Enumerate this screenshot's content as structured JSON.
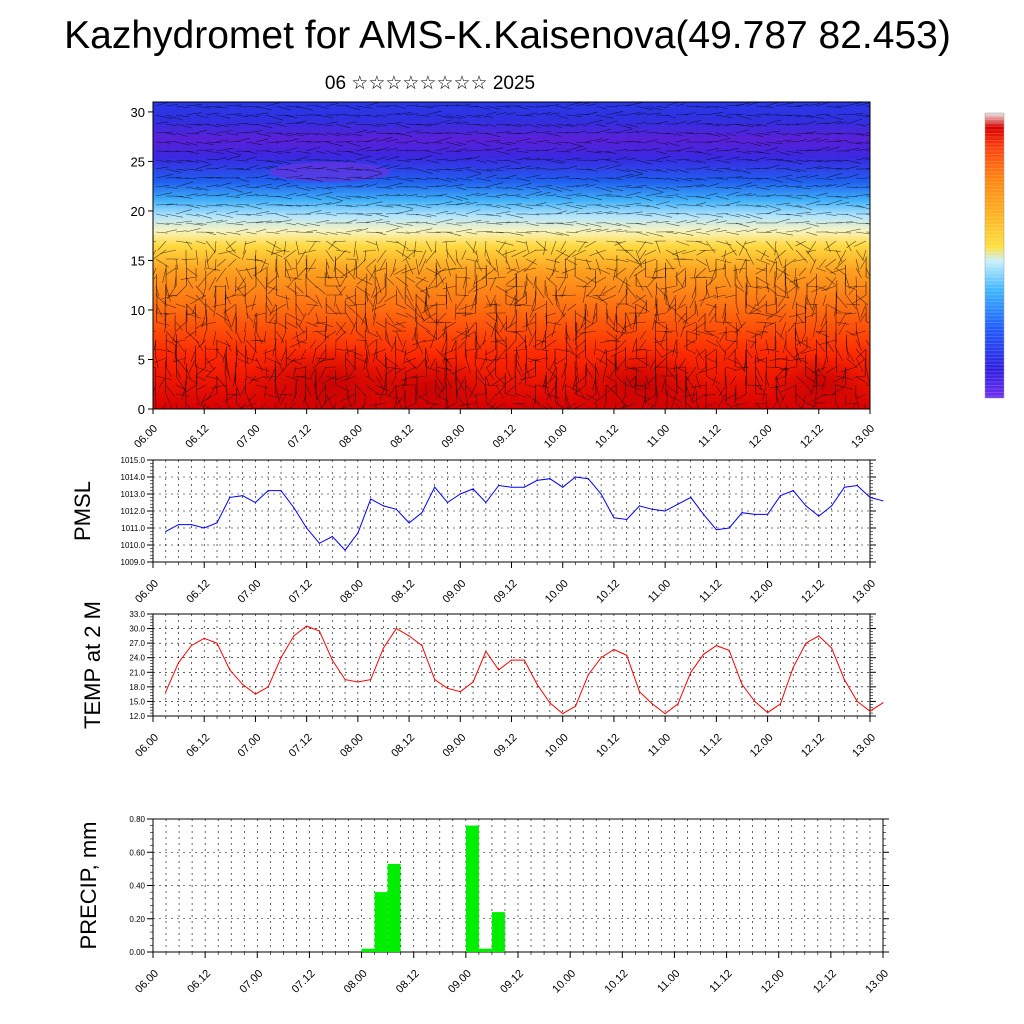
{
  "page": {
    "title": "Kazhydromet for AMS-K.Kaisenova(49.787 82.453)",
    "subtitle": "06 ☆☆☆☆☆☆☆☆ 2025"
  },
  "time_ticks": [
    "06.00",
    "06.12",
    "07.00",
    "07.12",
    "08.00",
    "08.12",
    "09.00",
    "09.12",
    "10.00",
    "10.12",
    "11.00",
    "11.12",
    "12.00",
    "12.12",
    "13.00"
  ],
  "chart_data": [
    {
      "type": "heatmap",
      "name": "vertical-cross-section",
      "x_ticks": [
        "06.00",
        "06.12",
        "07.00",
        "07.12",
        "08.00",
        "08.12",
        "09.00",
        "09.12",
        "10.00",
        "10.12",
        "11.00",
        "11.12",
        "12.00",
        "12.12",
        "13.00"
      ],
      "y_ticks": [
        0,
        5,
        10,
        15,
        20,
        25,
        30
      ],
      "ylim": [
        0,
        31
      ],
      "colorbar": {
        "colors": [
          "#e8e8e8",
          "#d80000",
          "#ff4010",
          "#ff8010",
          "#ffb020",
          "#ffe040",
          "#c8f0ff",
          "#40b8ff",
          "#2060ff",
          "#3020e0",
          "#7030f0"
        ]
      },
      "overlay": "wind barbs"
    },
    {
      "type": "line",
      "name": "pmsl",
      "ylabel": "PMSL",
      "y_ticks": [
        "1009.0",
        "1010.0",
        "1011.0",
        "1012.0",
        "1013.0",
        "1014.0",
        "1015.0"
      ],
      "ylim": [
        1009,
        1015
      ],
      "color": "#0000ff",
      "step_hours": 3,
      "start_hour": 3,
      "values": [
        1010.8,
        1011.2,
        1011.2,
        1011.0,
        1011.3,
        1012.8,
        1012.9,
        1012.5,
        1013.2,
        1013.2,
        1012.2,
        1011.0,
        1010.1,
        1010.5,
        1009.7,
        1010.7,
        1012.7,
        1012.3,
        1012.1,
        1011.3,
        1011.9,
        1013.4,
        1012.5,
        1013.0,
        1013.3,
        1012.5,
        1013.5,
        1013.4,
        1013.4,
        1013.8,
        1013.9,
        1013.4,
        1014.0,
        1013.9,
        1013.0,
        1011.6,
        1011.5,
        1012.3,
        1012.1,
        1012.0,
        1012.4,
        1012.8,
        1011.8,
        1010.9,
        1011.0,
        1011.9,
        1011.8,
        1011.8,
        1012.9,
        1013.2,
        1012.3,
        1011.7,
        1012.3,
        1013.4,
        1013.5,
        1012.8,
        1012.6
      ],
      "xlim_hours": [
        0,
        168
      ]
    },
    {
      "type": "line",
      "name": "temp-2m",
      "ylabel": "TEMP at 2 M",
      "y_ticks": [
        "12.0",
        "15.0",
        "18.0",
        "21.0",
        "24.0",
        "27.0",
        "30.0",
        "33.0"
      ],
      "ylim": [
        12,
        33
      ],
      "color": "#ff0000",
      "step_hours": 3,
      "start_hour": 3,
      "values": [
        17,
        23,
        26.5,
        28,
        27,
        21.5,
        18.5,
        16.5,
        18,
        24,
        28.5,
        30.5,
        29.5,
        23.5,
        19.5,
        19,
        19.5,
        26,
        30,
        28.5,
        26.5,
        19.5,
        17.7,
        17,
        19,
        25.3,
        21.5,
        23.5,
        23.5,
        18.5,
        14.7,
        12.5,
        14,
        20.5,
        24,
        25.7,
        24.5,
        17,
        14.5,
        12.5,
        14.5,
        21,
        24.7,
        26.5,
        25.5,
        18.5,
        15,
        12.7,
        14.5,
        22,
        27,
        28.5,
        26,
        19.5,
        15,
        13,
        14.7
      ],
      "xlim_hours": [
        0,
        168
      ]
    },
    {
      "type": "bar",
      "name": "precip",
      "ylabel": "PRECIP, mm",
      "y_ticks": [
        "0.00",
        "0.20",
        "0.40",
        "0.60",
        "0.80"
      ],
      "ylim": [
        0,
        0.8
      ],
      "color": "#00ee00",
      "bars": [
        {
          "hour": 48,
          "value": 0.02
        },
        {
          "hour": 51,
          "value": 0.36
        },
        {
          "hour": 54,
          "value": 0.53
        },
        {
          "hour": 72,
          "value": 0.76
        },
        {
          "hour": 75,
          "value": 0.02
        },
        {
          "hour": 78,
          "value": 0.24
        }
      ],
      "bar_hours": 3,
      "xlim_hours": [
        0,
        168
      ]
    }
  ]
}
